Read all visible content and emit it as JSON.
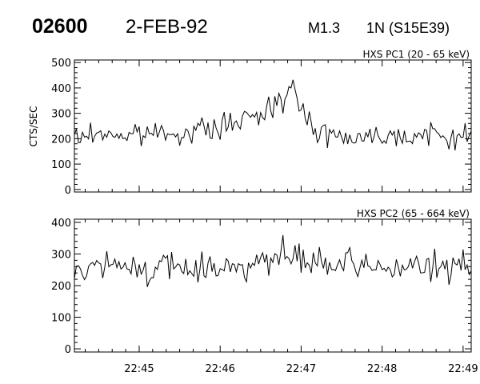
{
  "header": {
    "event_id": "02600",
    "date": "2-FEB-92",
    "flare_class": "M1.3",
    "location": "1N (S15E39)"
  },
  "chart_data": [
    {
      "type": "line",
      "title": "HXS PC1 (20 - 65 keV)",
      "ylabel": "CTS/SEC",
      "xlabel": "",
      "ylim": [
        -10,
        510
      ],
      "yticks": [
        0,
        100,
        200,
        300,
        400,
        500
      ],
      "xrange": [
        "22:44:12",
        "22:49:06"
      ],
      "xticks": [
        "22:45",
        "22:46",
        "22:47",
        "22:48",
        "22:49"
      ],
      "grid": false,
      "series": [
        {
          "x": [
            "22:44:12",
            "22:44:24",
            "22:44:36",
            "22:44:48",
            "22:45:00",
            "22:45:12",
            "22:45:24",
            "22:45:36",
            "22:45:48",
            "22:46:00",
            "22:46:12",
            "22:46:24",
            "22:46:36",
            "22:46:48",
            "22:46:54",
            "22:47:00",
            "22:47:12",
            "22:47:24",
            "22:47:36",
            "22:47:48",
            "22:48:00",
            "22:48:12",
            "22:48:24",
            "22:48:36",
            "22:48:48",
            "22:49:00",
            "22:49:06"
          ],
          "values": [
            200,
            215,
            225,
            210,
            215,
            225,
            230,
            220,
            235,
            245,
            265,
            275,
            320,
            400,
            390,
            300,
            235,
            215,
            210,
            205,
            220,
            215,
            210,
            215,
            205,
            210,
            200
          ]
        }
      ]
    },
    {
      "type": "line",
      "title": "HXS PC2 (65 - 664 keV)",
      "ylabel": "",
      "xlabel": "",
      "ylim": [
        -10,
        410
      ],
      "yticks": [
        0,
        100,
        200,
        300,
        400
      ],
      "xrange": [
        "22:44:12",
        "22:49:06"
      ],
      "xticks": [
        "22:45",
        "22:46",
        "22:47",
        "22:48",
        "22:49"
      ],
      "grid": false,
      "series": [
        {
          "x": [
            "22:44:12",
            "22:44:30",
            "22:44:48",
            "22:45:06",
            "22:45:24",
            "22:45:42",
            "22:46:00",
            "22:46:18",
            "22:46:36",
            "22:46:48",
            "22:47:00",
            "22:47:18",
            "22:47:36",
            "22:47:54",
            "22:48:12",
            "22:48:30",
            "22:48:48",
            "22:49:06"
          ],
          "values": [
            255,
            260,
            258,
            255,
            255,
            255,
            262,
            270,
            275,
            290,
            280,
            265,
            258,
            258,
            258,
            255,
            258,
            260
          ]
        }
      ]
    }
  ]
}
